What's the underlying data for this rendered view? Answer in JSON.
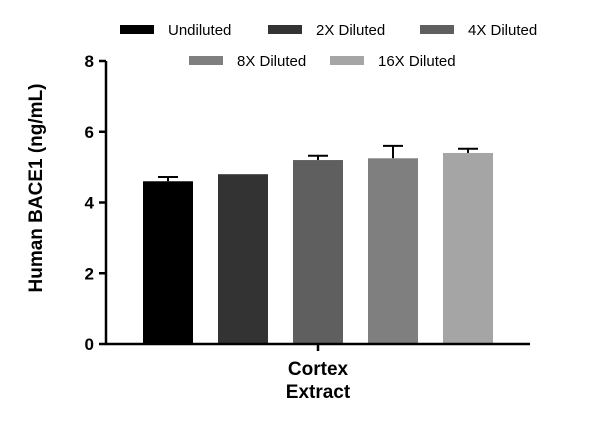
{
  "chart_data": {
    "type": "bar",
    "title": "",
    "categories": [
      "Cortex Extract"
    ],
    "category_lines": [
      "Cortex",
      "Extract"
    ],
    "ylabel": "Human BACE1 (ng/mL)",
    "xlabel": "",
    "ylim": [
      0,
      8
    ],
    "yticks": [
      0,
      2,
      4,
      6,
      8
    ],
    "grid": false,
    "legend_position": "top",
    "series": [
      {
        "name": "Undiluted",
        "values": [
          4.6
        ],
        "error": [
          0.12
        ],
        "color": "#000000"
      },
      {
        "name": "2X Diluted",
        "values": [
          4.8
        ],
        "error": [
          0.0
        ],
        "color": "#333333"
      },
      {
        "name": "4X Diluted",
        "values": [
          5.2
        ],
        "error": [
          0.12
        ],
        "color": "#5f5f5f"
      },
      {
        "name": "8X Diluted",
        "values": [
          5.25
        ],
        "error": [
          0.35
        ],
        "color": "#7f7f7f"
      },
      {
        "name": "16X Diluted",
        "values": [
          5.4
        ],
        "error": [
          0.12
        ],
        "color": "#a5a5a5"
      }
    ]
  }
}
